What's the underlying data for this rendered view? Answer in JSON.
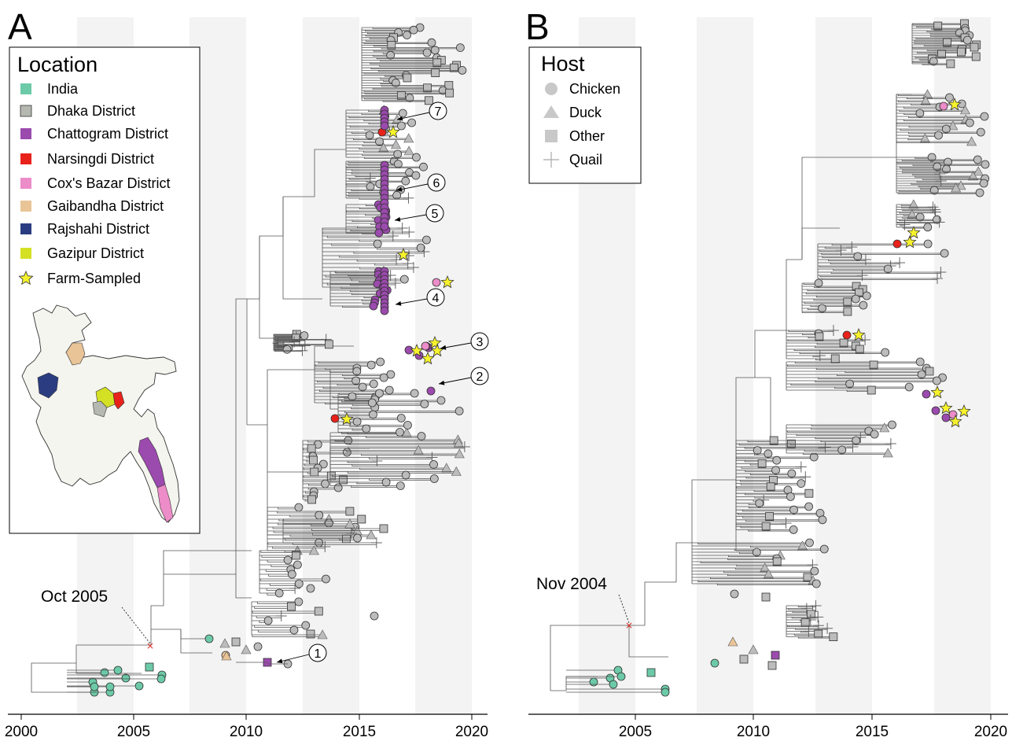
{
  "panels": [
    {
      "letter": "A"
    },
    {
      "letter": "B"
    }
  ],
  "axis": {
    "ticks": [
      "2000",
      "2005",
      "2010",
      "2015",
      "2020"
    ]
  },
  "location_legend": {
    "title": "Location",
    "items": [
      {
        "label": "India",
        "color": "#6ccaa8",
        "marker": "square"
      },
      {
        "label": "Dhaka District",
        "color": "#b5b8b1",
        "marker": "square"
      },
      {
        "label": "Chattogram District",
        "color": "#9b4aad",
        "marker": "square"
      },
      {
        "label": "Narsingdi District",
        "color": "#e8221b",
        "marker": "square"
      },
      {
        "label": "Cox's Bazar District",
        "color": "#ec8cc8",
        "marker": "square"
      },
      {
        "label": "Gaibandha District",
        "color": "#e8c497",
        "marker": "square"
      },
      {
        "label": "Rajshahi District",
        "color": "#2b3d80",
        "marker": "square"
      },
      {
        "label": "Gazipur District",
        "color": "#d4e024",
        "marker": "square"
      },
      {
        "label": "Farm-Sampled",
        "color": "#f6f22c",
        "marker": "star"
      }
    ]
  },
  "host_legend": {
    "title": "Host",
    "items": [
      {
        "label": "Chicken",
        "marker": "circle"
      },
      {
        "label": "Duck",
        "marker": "triangle"
      },
      {
        "label": "Other",
        "marker": "square"
      },
      {
        "label": "Quail",
        "marker": "plus"
      }
    ]
  },
  "annotations": {
    "root_a": "Oct 2005",
    "root_b": "Nov 2004",
    "clades": [
      "1",
      "2",
      "3",
      "4",
      "5",
      "6",
      "7"
    ]
  },
  "colors": {
    "grey_tip": "#bcbcbc",
    "band": "#f2f2f2",
    "map_fill": "#f4f5ef"
  }
}
